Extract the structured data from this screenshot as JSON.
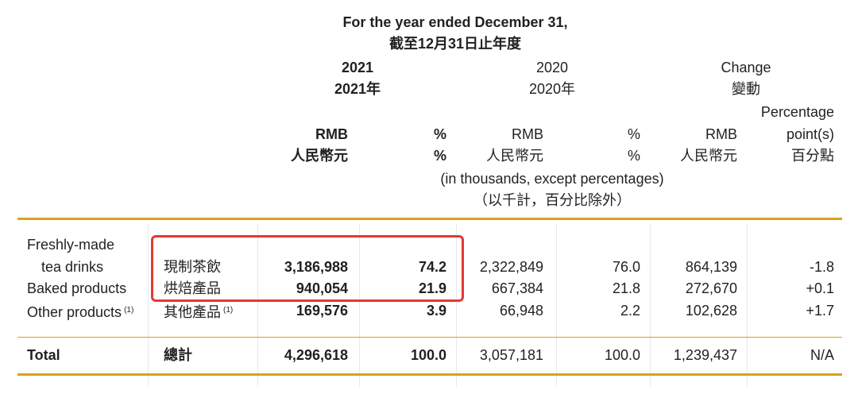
{
  "header": {
    "period_en": "For the year ended December 31,",
    "period_zh": "截至12月31日止年度",
    "y2021_en": "2021",
    "y2021_zh": "2021年",
    "y2020_en": "2020",
    "y2020_zh": "2020年",
    "change_en": "Change",
    "change_zh": "變動",
    "units": {
      "rmb_en": "RMB",
      "rmb_zh": "人民幣元",
      "pct_en": "%",
      "pct_zh": "%",
      "pp_en_1": "Percentage",
      "pp_en_2": "point(s)",
      "pp_zh": "百分點"
    },
    "note_en": "(in thousands, except percentages)",
    "note_zh": "（以千計，百分比除外）"
  },
  "rows": [
    {
      "label_en_1": "Freshly-made",
      "label_en_2": "tea drinks",
      "label_zh": "現制茶飲",
      "rmb_2021": "3,186,988",
      "pct_2021": "74.2",
      "rmb_2020": "2,322,849",
      "pct_2020": "76.0",
      "change_rmb": "864,139",
      "change_pp": "-1.8"
    },
    {
      "label_en": "Baked products",
      "label_zh": "烘焙產品",
      "rmb_2021": "940,054",
      "pct_2021": "21.9",
      "rmb_2020": "667,384",
      "pct_2020": "21.8",
      "change_rmb": "272,670",
      "change_pp": "+0.1"
    },
    {
      "label_en": "Other products",
      "footnote": "(1)",
      "label_zh": "其他產品",
      "rmb_2021": "169,576",
      "pct_2021": "3.9",
      "rmb_2020": "66,948",
      "pct_2020": "2.2",
      "change_rmb": "102,628",
      "change_pp": "+1.7"
    }
  ],
  "total": {
    "label_en": "Total",
    "label_zh": "總計",
    "rmb_2021": "4,296,618",
    "pct_2021": "100.0",
    "rmb_2020": "3,057,181",
    "pct_2020": "100.0",
    "change_rmb": "1,239,437",
    "change_pp": "N/A"
  },
  "colors": {
    "rule": "#d9a21b",
    "highlight": "#e53935"
  }
}
